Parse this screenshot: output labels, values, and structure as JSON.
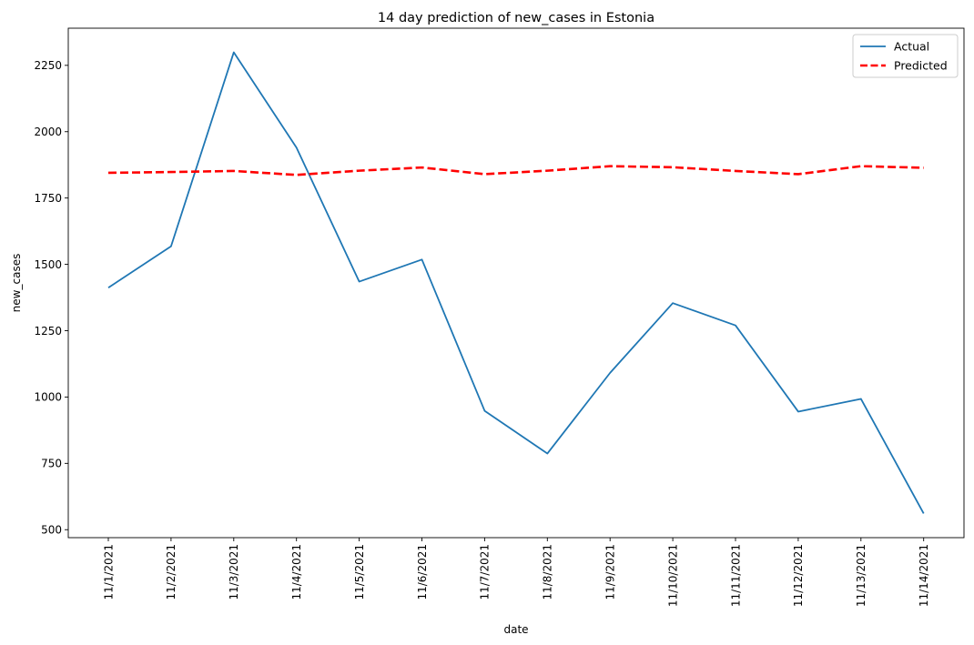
{
  "chart_data": {
    "type": "line",
    "title": "14 day prediction of new_cases in Estonia",
    "xlabel": "date",
    "ylabel": "new_cases",
    "categories": [
      "11/1/2021",
      "11/2/2021",
      "11/3/2021",
      "11/4/2021",
      "11/5/2021",
      "11/6/2021",
      "11/7/2021",
      "11/8/2021",
      "11/9/2021",
      "11/10/2021",
      "11/11/2021",
      "11/12/2021",
      "11/13/2021",
      "11/14/2021"
    ],
    "yticks": [
      500,
      750,
      1000,
      1250,
      1500,
      1750,
      2000,
      2250
    ],
    "ylim": [
      470,
      2390
    ],
    "grid": false,
    "legend_position": "top-right",
    "series": [
      {
        "name": "Actual",
        "color": "#1f77b4",
        "style": "solid",
        "values": [
          1412,
          1568,
          2299,
          1940,
          1435,
          1518,
          948,
          787,
          1091,
          1354,
          1270,
          945,
          993,
          561
        ]
      },
      {
        "name": "Predicted",
        "color": "#ff0000",
        "style": "dashed",
        "values": [
          1845,
          1848,
          1852,
          1837,
          1853,
          1865,
          1840,
          1853,
          1870,
          1866,
          1852,
          1840,
          1870,
          1864
        ]
      }
    ]
  }
}
